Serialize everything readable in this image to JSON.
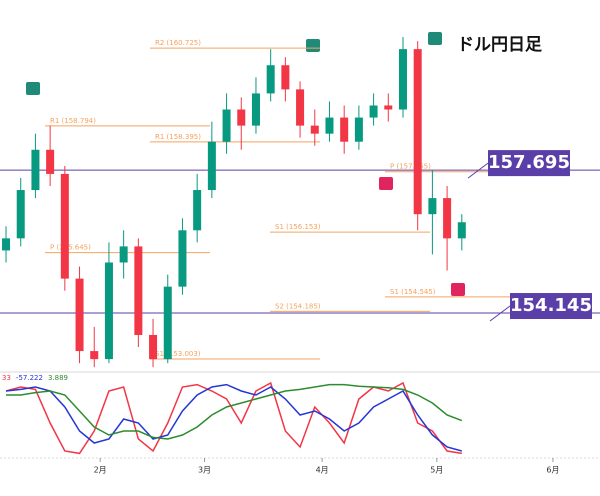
{
  "chart_data": [
    {
      "type": "candlestick",
      "title": "ドル円日足",
      "open": [
        155.7,
        156.0,
        157.2,
        158.2,
        157.6,
        155.0,
        153.2,
        153.0,
        155.4,
        155.8,
        153.6,
        153.0,
        154.8,
        156.2,
        157.2,
        158.4,
        159.2,
        158.8,
        159.6,
        160.3,
        159.7,
        158.8,
        158.6,
        159.0,
        158.4,
        159.0,
        159.3,
        159.2,
        160.7,
        156.6,
        157.0,
        156.0
      ],
      "high": [
        156.3,
        157.5,
        158.6,
        158.8,
        157.8,
        155.3,
        153.8,
        155.9,
        156.2,
        156.0,
        154.0,
        155.1,
        156.5,
        157.6,
        158.9,
        159.6,
        159.5,
        160.0,
        160.7,
        160.5,
        159.9,
        159.2,
        159.4,
        159.3,
        159.3,
        159.6,
        159.6,
        161.0,
        160.9,
        157.7,
        157.3,
        156.6
      ],
      "low": [
        155.4,
        155.8,
        157.0,
        157.3,
        154.7,
        152.9,
        152.8,
        152.9,
        155.0,
        153.3,
        152.8,
        152.9,
        154.6,
        155.9,
        157.0,
        158.1,
        158.2,
        158.6,
        159.4,
        159.4,
        158.5,
        158.3,
        158.4,
        158.1,
        158.2,
        158.8,
        158.9,
        159.0,
        156.2,
        155.6,
        155.2,
        155.7
      ],
      "close": [
        156.0,
        157.2,
        158.2,
        157.6,
        155.0,
        153.2,
        153.0,
        155.4,
        155.8,
        153.6,
        153.0,
        154.8,
        156.2,
        157.2,
        158.4,
        159.2,
        158.8,
        159.6,
        160.3,
        159.7,
        158.8,
        158.6,
        159.0,
        158.4,
        159.0,
        159.3,
        159.2,
        160.7,
        156.6,
        157.0,
        156.0,
        156.4
      ],
      "up_color": "#089981",
      "down_color": "#f23645",
      "xlim": [
        -0.41,
        40.4
      ],
      "ylim": [
        152.73,
        161.92
      ],
      "xticks": [
        {
          "value": 6.4,
          "label": "2月"
        },
        {
          "value": 13.5,
          "label": "3月"
        },
        {
          "value": 21.5,
          "label": "4月"
        },
        {
          "value": 29.3,
          "label": "5月"
        },
        {
          "value": 37.2,
          "label": "6月"
        }
      ],
      "levels": [
        {
          "label": "R2 (160.725)",
          "value": 160.725
        },
        {
          "label": "R1 (158.794)",
          "value": 158.794
        },
        {
          "label": "R1 (158.395)",
          "value": 158.395
        },
        {
          "label": "P (157.655)",
          "value": 157.655
        },
        {
          "label": "S1 (156.153)",
          "value": 156.153
        },
        {
          "label": "P (155.645)",
          "value": 155.645
        },
        {
          "label": "S1 (154.545)",
          "value": 154.545
        },
        {
          "label": "S2 (154.185)",
          "value": 154.185
        },
        {
          "label": "S1 (153.003)",
          "value": 153.003
        }
      ],
      "price_lines": [
        {
          "label": "157.695",
          "value": 157.695
        },
        {
          "label": "154.145",
          "value": 154.145
        }
      ],
      "line_color": "#5b3fa8",
      "level_color": "#f5a25d"
    },
    {
      "type": "line",
      "xlim": [
        -0.41,
        40.4
      ],
      "ylim": [
        -100,
        0
      ],
      "legend_values": [
        "33",
        "-57.222",
        "3.889"
      ],
      "series": [
        {
          "color": "#f23645",
          "values": [
            -20,
            -15,
            -18,
            -60,
            -95,
            -98,
            -70,
            -20,
            -15,
            -80,
            -95,
            -60,
            -15,
            -12,
            -20,
            -30,
            -60,
            -20,
            -10,
            -70,
            -90,
            -40,
            -60,
            -85,
            -30,
            -15,
            -20,
            -10,
            -60,
            -70,
            -95,
            -98
          ]
        },
        {
          "color": "#2436d6",
          "values": [
            -20,
            -18,
            -15,
            -20,
            -40,
            -70,
            -85,
            -80,
            -55,
            -60,
            -80,
            -75,
            -45,
            -25,
            -15,
            -12,
            -20,
            -25,
            -15,
            -30,
            -50,
            -45,
            -55,
            -70,
            -60,
            -40,
            -30,
            -20,
            -50,
            -75,
            -90,
            -95
          ]
        },
        {
          "color": "#2e8b2e",
          "values": [
            -25,
            -25,
            -22,
            -20,
            -25,
            -45,
            -65,
            -75,
            -70,
            -70,
            -78,
            -80,
            -75,
            -65,
            -50,
            -40,
            -35,
            -30,
            -25,
            -20,
            -18,
            -15,
            -12,
            -12,
            -14,
            -15,
            -16,
            -18,
            -25,
            -35,
            -50,
            -57
          ]
        }
      ]
    }
  ]
}
